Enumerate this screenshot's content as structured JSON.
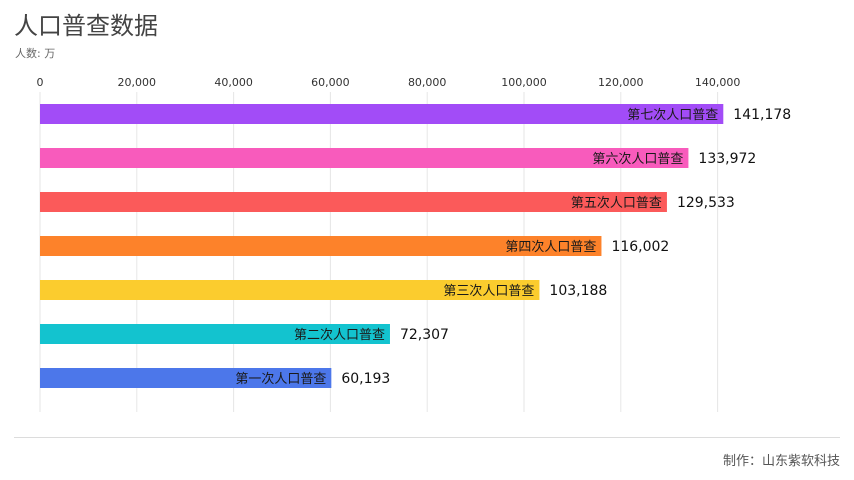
{
  "header": {
    "title": "人口普查数据",
    "unit": "人数: 万"
  },
  "footer": {
    "credit": "制作：山东紫软科技"
  },
  "chart_data": {
    "type": "bar",
    "orientation": "horizontal",
    "title": "人口普查数据",
    "categories": [
      "第七次人口普查",
      "第六次人口普查",
      "第五次人口普查",
      "第四次人口普查",
      "第三次人口普查",
      "第二次人口普查",
      "第一次人口普查"
    ],
    "values": [
      141178,
      133972,
      129533,
      116002,
      103188,
      72307,
      60193
    ],
    "value_labels": [
      "141,178",
      "133,972",
      "129,533",
      "116,002",
      "103,188",
      "72,307",
      "60,193"
    ],
    "colors": [
      "#a24cf7",
      "#f85bbc",
      "#fb5a5a",
      "#fd822a",
      "#fbcc2e",
      "#13c3cf",
      "#4c77ea"
    ],
    "x_ticks": [
      0,
      20000,
      40000,
      60000,
      80000,
      100000,
      120000,
      140000
    ],
    "x_tick_labels": [
      "0",
      "20,000",
      "40,000",
      "60,000",
      "80,000",
      "100,000",
      "120,000",
      "140,000"
    ],
    "xlim": [
      0,
      150000
    ],
    "xaxis_position": "top",
    "grid": true
  }
}
